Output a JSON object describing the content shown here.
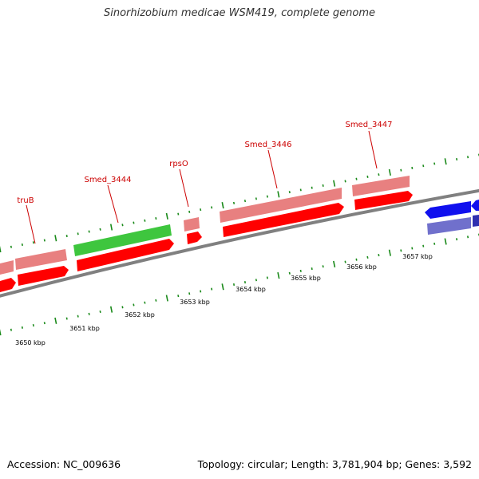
{
  "title": "Sinorhizobium medicae WSM419, complete genome",
  "footer": {
    "accession": "Accession: NC_009636",
    "topology": "Topology: circular; Length: 3,781,904 bp; Genes: 3,592"
  },
  "colors": {
    "forward_cds": "#ff0000",
    "forward_gene": "#e88080",
    "rna_gene": "#3ec63e",
    "reverse_cds": "#1010ee",
    "reverse_gene": "#7070cc",
    "backbone": "#808080",
    "ticks": "#1a8a1a",
    "gene_label": "#cc0000"
  },
  "gene_labels": [
    "truB",
    "Smed_3444",
    "rpsO",
    "Smed_3446",
    "Smed_3447"
  ],
  "kbp_labels": [
    "3650 kbp",
    "3651 kbp",
    "3652 kbp",
    "3653 kbp",
    "3654 kbp",
    "3655 kbp",
    "3656 kbp",
    "3657 kbp"
  ]
}
